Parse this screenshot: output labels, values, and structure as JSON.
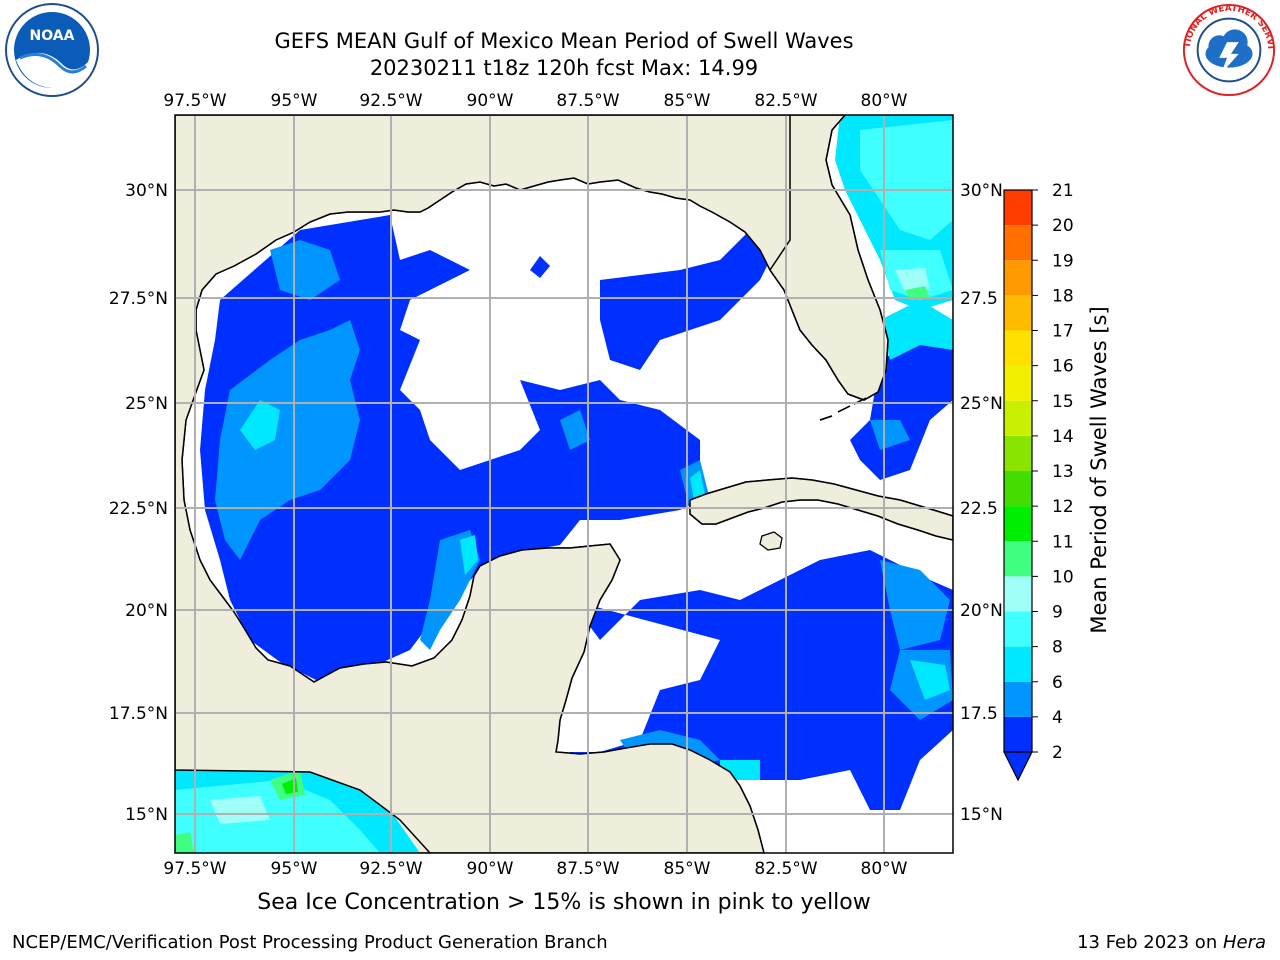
{
  "header": {
    "title_line1": "GEFS MEAN Gulf of Mexico Mean Period of Swell Waves",
    "title_line2": "20230211 t18z 120h fcst   Max: 14.99"
  },
  "logos": {
    "left": "NOAA",
    "right": "NATIONAL WEATHER SERVICE"
  },
  "map": {
    "lon_labels": [
      "97.5°W",
      "95°W",
      "92.5°W",
      "90°W",
      "87.5°W",
      "85°W",
      "82.5°W",
      "80°W"
    ],
    "lat_labels": [
      "30°N",
      "27.5°N",
      "25°N",
      "22.5°N",
      "20°N",
      "17.5°N",
      "15°N"
    ],
    "lat_labels_right": [
      "30°N",
      "27.5",
      "25°N",
      "22.5",
      "20°N",
      "17.5",
      "15°N"
    ],
    "land_color": "#efeedd",
    "ocean_color": "#ffffff",
    "grid_color": "#b0b0b0"
  },
  "colorbar": {
    "label": "Mean Period of Swell Waves [s]",
    "ticks": [
      "2",
      "4",
      "6",
      "8",
      "9",
      "10",
      "11",
      "12",
      "13",
      "14",
      "15",
      "16",
      "17",
      "18",
      "19",
      "20",
      "21"
    ],
    "colors": [
      "#0030ff",
      "#0095ff",
      "#00e8ff",
      "#40ffff",
      "#a0fff8",
      "#40ff80",
      "#00ee00",
      "#44dd00",
      "#88e400",
      "#c8f000",
      "#f0f000",
      "#ffe000",
      "#ffbb00",
      "#ff9900",
      "#ff7000",
      "#ff3c00",
      "#ff0000"
    ]
  },
  "footer": {
    "ice_note": "Sea Ice Concentration > 15% is shown in pink to yellow",
    "credit": "NCEP/EMC/Verification Post Processing Product Generation Branch",
    "date": "13 Feb 2023 on ",
    "host": "Hera"
  }
}
